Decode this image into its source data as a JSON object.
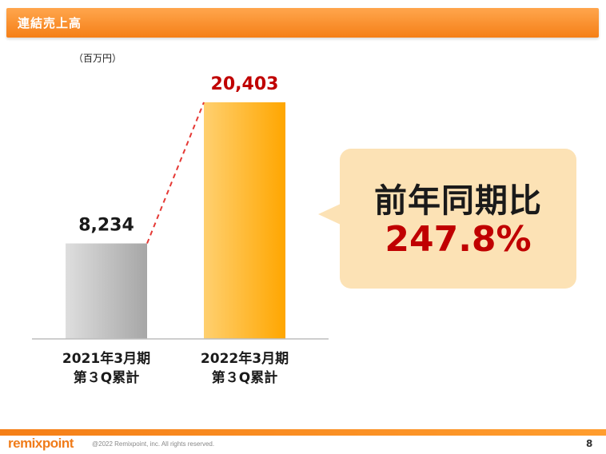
{
  "header": {
    "title": "連結売上高"
  },
  "unit_label": "（百万円）",
  "chart_data": {
    "type": "bar",
    "categories": [
      [
        "2021年3月期",
        "第３Q累計"
      ],
      [
        "2022年3月期",
        "第３Q累計"
      ]
    ],
    "values": [
      8234,
      20403
    ],
    "value_labels": [
      "8,234",
      "20,403"
    ],
    "ylabel": "（百万円）",
    "colors": [
      "#b8b8b8",
      "#ffb300"
    ],
    "value_label_colors": [
      "#1a1a1a",
      "#c00000"
    ],
    "connector": "dashed-red",
    "annotation": {
      "label": "前年同期比",
      "value": "247.8%"
    }
  },
  "bubble": {
    "label": "前年同期比",
    "value": "247.8%"
  },
  "footer": {
    "logo": "remixpoint",
    "copyright": "@2022 Remixpoint, inc. All rights reserved.",
    "page_number": "8"
  }
}
